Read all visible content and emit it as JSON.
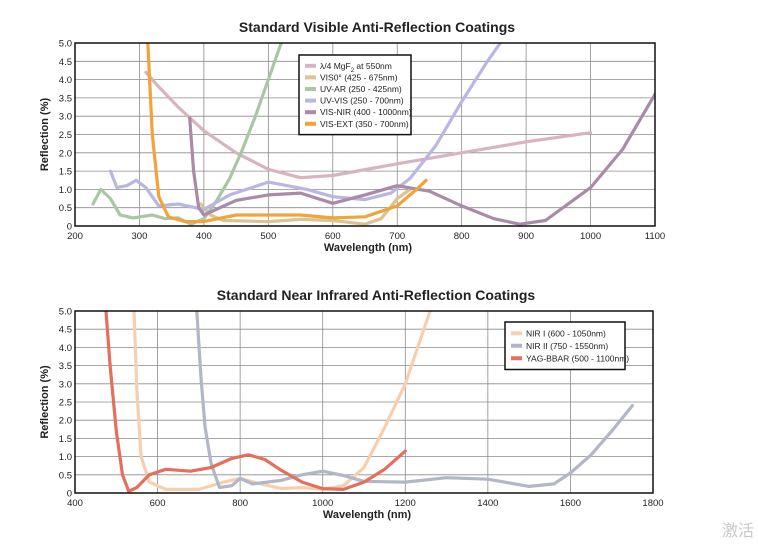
{
  "watermark": "激活",
  "chart_data": [
    {
      "type": "line",
      "title": "Standard Visible Anti-Reflection Coatings",
      "xlabel": "Wavelength (nm)",
      "ylabel": "Reflection (%)",
      "xlim": [
        200,
        1100
      ],
      "ylim": [
        0,
        5
      ],
      "xticks": [
        200,
        300,
        400,
        500,
        600,
        700,
        800,
        900,
        1000,
        1100
      ],
      "yticks": [
        0,
        0.5,
        1,
        1.5,
        2,
        2.5,
        3,
        3.5,
        4,
        4.5,
        5
      ],
      "ytick_labels": [
        "0",
        "0.5",
        "1.0",
        "1.5",
        "2.0",
        "2.5",
        "3.0",
        "3.5",
        "4.0",
        "4.5",
        "5.0"
      ],
      "grid": true,
      "legend_position": "top-center",
      "series": [
        {
          "name": "λ/4 MgF2 at 550nm",
          "color": "#d8b4bf",
          "points": [
            [
              310,
              4.2
            ],
            [
              330,
              3.8
            ],
            [
              360,
              3.25
            ],
            [
              400,
              2.6
            ],
            [
              450,
              2.0
            ],
            [
              500,
              1.55
            ],
            [
              550,
              1.32
            ],
            [
              600,
              1.38
            ],
            [
              700,
              1.7
            ],
            [
              800,
              2.0
            ],
            [
              900,
              2.3
            ],
            [
              1000,
              2.55
            ]
          ]
        },
        {
          "name": "VIS0° (425 - 675nm)",
          "color": "#dcc392",
          "points": [
            [
              395,
              0.6
            ],
            [
              410,
              0.3
            ],
            [
              430,
              0.15
            ],
            [
              500,
              0.12
            ],
            [
              550,
              0.18
            ],
            [
              600,
              0.15
            ],
            [
              650,
              0.05
            ],
            [
              675,
              0.2
            ],
            [
              700,
              0.75
            ],
            [
              720,
              1.0
            ]
          ]
        },
        {
          "name": "UV-AR (250 - 425nm)",
          "color": "#a9c7a4",
          "points": [
            [
              228,
              0.6
            ],
            [
              240,
              1.0
            ],
            [
              255,
              0.75
            ],
            [
              270,
              0.3
            ],
            [
              290,
              0.22
            ],
            [
              320,
              0.3
            ],
            [
              340,
              0.2
            ],
            [
              360,
              0.22
            ],
            [
              380,
              0.05
            ],
            [
              400,
              0.2
            ],
            [
              420,
              0.7
            ],
            [
              440,
              1.3
            ],
            [
              460,
              2.1
            ],
            [
              480,
              3.0
            ],
            [
              500,
              4.0
            ],
            [
              520,
              5.0
            ]
          ]
        },
        {
          "name": "UV-VIS (250 - 700nm)",
          "color": "#b9b6e3",
          "points": [
            [
              255,
              1.5
            ],
            [
              265,
              1.05
            ],
            [
              280,
              1.1
            ],
            [
              295,
              1.25
            ],
            [
              310,
              1.05
            ],
            [
              330,
              0.55
            ],
            [
              360,
              0.6
            ],
            [
              400,
              0.45
            ],
            [
              440,
              0.85
            ],
            [
              500,
              1.2
            ],
            [
              560,
              1.0
            ],
            [
              600,
              0.8
            ],
            [
              650,
              0.72
            ],
            [
              690,
              0.9
            ],
            [
              720,
              1.3
            ],
            [
              760,
              2.2
            ],
            [
              800,
              3.4
            ],
            [
              840,
              4.5
            ],
            [
              860,
              5.0
            ]
          ]
        },
        {
          "name": "VIS-NIR (400 - 1000nm)",
          "color": "#a98aa9",
          "points": [
            [
              378,
              2.95
            ],
            [
              384,
              1.5
            ],
            [
              392,
              0.5
            ],
            [
              400,
              0.3
            ],
            [
              450,
              0.7
            ],
            [
              500,
              0.85
            ],
            [
              550,
              0.9
            ],
            [
              600,
              0.62
            ],
            [
              650,
              0.85
            ],
            [
              700,
              1.1
            ],
            [
              750,
              0.95
            ],
            [
              800,
              0.55
            ],
            [
              850,
              0.2
            ],
            [
              890,
              0.05
            ],
            [
              930,
              0.15
            ],
            [
              1000,
              1.05
            ],
            [
              1050,
              2.1
            ],
            [
              1100,
              3.6
            ]
          ]
        },
        {
          "name": "VIS-EXT (350 - 700nm)",
          "color": "#f0a43a",
          "points": [
            [
              313,
              5.0
            ],
            [
              320,
              2.5
            ],
            [
              330,
              0.8
            ],
            [
              345,
              0.25
            ],
            [
              370,
              0.12
            ],
            [
              400,
              0.12
            ],
            [
              450,
              0.3
            ],
            [
              500,
              0.3
            ],
            [
              550,
              0.3
            ],
            [
              600,
              0.22
            ],
            [
              650,
              0.25
            ],
            [
              700,
              0.55
            ],
            [
              730,
              1.0
            ],
            [
              745,
              1.25
            ]
          ]
        }
      ],
      "legend": [
        {
          "prefix": "λ/4 MgF",
          "sub": "2",
          "suffix": " at 550nm"
        },
        {
          "prefix": "VIS0° (425 - 675nm)",
          "sub": "",
          "suffix": ""
        },
        {
          "prefix": "UV-AR (250 - 425nm)",
          "sub": "",
          "suffix": ""
        },
        {
          "prefix": "UV-VIS (250 - 700nm)",
          "sub": "",
          "suffix": ""
        },
        {
          "prefix": "VIS-NIR (400 - 1000nm)",
          "sub": "",
          "suffix": ""
        },
        {
          "prefix": "VIS-EXT (350 - 700nm)",
          "sub": "",
          "suffix": ""
        }
      ]
    },
    {
      "type": "line",
      "title": "Standard Near Infrared Anti-Reflection Coatings",
      "xlabel": "Wavelength (nm)",
      "ylabel": "Reflection (%)",
      "xlim": [
        400,
        1800
      ],
      "ylim": [
        0,
        5
      ],
      "xticks": [
        400,
        600,
        800,
        1000,
        1200,
        1400,
        1600,
        1800
      ],
      "yticks": [
        0,
        0.5,
        1,
        1.5,
        2,
        2.5,
        3,
        3.5,
        4,
        4.5,
        5
      ],
      "ytick_labels": [
        "0",
        "0.5",
        "1.0",
        "1.5",
        "2.0",
        "2.5",
        "3.0",
        "3.5",
        "4.0",
        "4.5",
        "5.0"
      ],
      "grid": true,
      "legend_position": "top-right",
      "series": [
        {
          "name": "NIR I (600 - 1050nm)",
          "color": "#f7cfae",
          "points": [
            [
              543,
              5.0
            ],
            [
              550,
              2.8
            ],
            [
              560,
              1.0
            ],
            [
              580,
              0.3
            ],
            [
              620,
              0.1
            ],
            [
              700,
              0.1
            ],
            [
              760,
              0.3
            ],
            [
              800,
              0.4
            ],
            [
              850,
              0.25
            ],
            [
              900,
              0.12
            ],
            [
              950,
              0.15
            ],
            [
              1000,
              0.1
            ],
            [
              1050,
              0.2
            ],
            [
              1100,
              0.7
            ],
            [
              1150,
              1.8
            ],
            [
              1200,
              3.0
            ],
            [
              1245,
              4.5
            ],
            [
              1260,
              5.0
            ]
          ]
        },
        {
          "name": "NIR II (750 - 1550nm)",
          "color": "#b1b6c8",
          "points": [
            [
              695,
              5.0
            ],
            [
              705,
              3.2
            ],
            [
              715,
              1.8
            ],
            [
              730,
              0.8
            ],
            [
              750,
              0.15
            ],
            [
              780,
              0.2
            ],
            [
              800,
              0.4
            ],
            [
              830,
              0.25
            ],
            [
              900,
              0.35
            ],
            [
              950,
              0.5
            ],
            [
              1000,
              0.6
            ],
            [
              1050,
              0.48
            ],
            [
              1100,
              0.32
            ],
            [
              1200,
              0.3
            ],
            [
              1300,
              0.42
            ],
            [
              1400,
              0.38
            ],
            [
              1500,
              0.18
            ],
            [
              1560,
              0.25
            ],
            [
              1600,
              0.55
            ],
            [
              1650,
              1.05
            ],
            [
              1700,
              1.7
            ],
            [
              1750,
              2.4
            ]
          ]
        },
        {
          "name": "YAG-BBAR (500 - 1100nm)",
          "color": "#e36f5d",
          "points": [
            [
              475,
              5.0
            ],
            [
              485,
              3.5
            ],
            [
              500,
              1.7
            ],
            [
              515,
              0.5
            ],
            [
              530,
              0.05
            ],
            [
              550,
              0.15
            ],
            [
              580,
              0.5
            ],
            [
              620,
              0.65
            ],
            [
              680,
              0.6
            ],
            [
              730,
              0.7
            ],
            [
              780,
              0.95
            ],
            [
              820,
              1.05
            ],
            [
              860,
              0.92
            ],
            [
              900,
              0.62
            ],
            [
              950,
              0.3
            ],
            [
              1000,
              0.12
            ],
            [
              1050,
              0.1
            ],
            [
              1100,
              0.3
            ],
            [
              1150,
              0.65
            ],
            [
              1200,
              1.15
            ]
          ]
        }
      ],
      "legend": [
        {
          "prefix": "NIR I (600 - 1050nm)",
          "sub": "",
          "suffix": ""
        },
        {
          "prefix": "NIR II (750 - 1550nm)",
          "sub": "",
          "suffix": ""
        },
        {
          "prefix": "YAG-BBAR (500 - 1100nm)",
          "sub": "",
          "suffix": ""
        }
      ]
    }
  ]
}
